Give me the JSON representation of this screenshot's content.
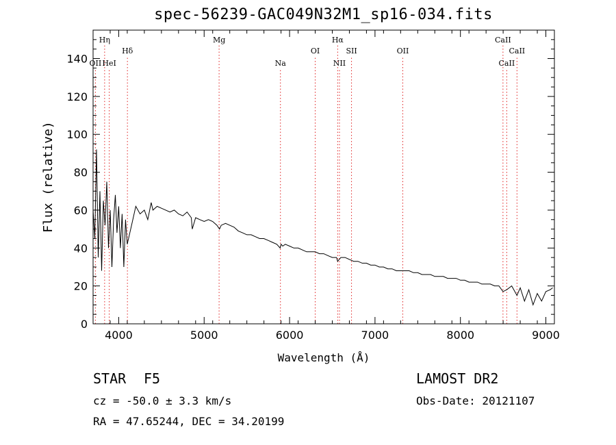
{
  "chart_data": {
    "type": "line",
    "title": "spec-56239-GAC049N32M1_sp16-034.fits",
    "xlabel": "Wavelength (Å)",
    "ylabel": "Flux (relative)",
    "xlim": [
      3700,
      9100
    ],
    "ylim": [
      0,
      155
    ],
    "x_ticks": [
      4000,
      5000,
      6000,
      7000,
      8000,
      9000
    ],
    "y_ticks": [
      0,
      20,
      40,
      60,
      80,
      100,
      120,
      140
    ],
    "grid": false,
    "line_color": "#000000",
    "marker_color": "#e02020",
    "series": [
      {
        "name": "flux",
        "x": [
          3700,
          3720,
          3740,
          3760,
          3780,
          3800,
          3820,
          3840,
          3860,
          3880,
          3900,
          3920,
          3940,
          3960,
          3980,
          4000,
          4020,
          4040,
          4060,
          4080,
          4100,
          4150,
          4200,
          4250,
          4300,
          4340,
          4380,
          4400,
          4450,
          4500,
          4550,
          4600,
          4650,
          4700,
          4750,
          4800,
          4850,
          4861,
          4900,
          4950,
          5000,
          5050,
          5100,
          5150,
          5180,
          5200,
          5250,
          5300,
          5350,
          5400,
          5450,
          5500,
          5550,
          5600,
          5650,
          5700,
          5750,
          5800,
          5850,
          5890,
          5900,
          5920,
          5950,
          6000,
          6050,
          6100,
          6150,
          6200,
          6250,
          6300,
          6350,
          6400,
          6450,
          6500,
          6550,
          6563,
          6600,
          6650,
          6700,
          6750,
          6800,
          6850,
          6900,
          6950,
          7000,
          7050,
          7100,
          7150,
          7200,
          7250,
          7300,
          7350,
          7400,
          7450,
          7500,
          7550,
          7600,
          7650,
          7700,
          7750,
          7800,
          7850,
          7900,
          7950,
          8000,
          8050,
          8100,
          8150,
          8200,
          8250,
          8300,
          8350,
          8400,
          8450,
          8498,
          8542,
          8600,
          8662,
          8700,
          8750,
          8800,
          8850,
          8900,
          8950,
          9000,
          9050,
          9080
        ],
        "values": [
          60,
          45,
          92,
          35,
          70,
          28,
          65,
          52,
          75,
          40,
          60,
          30,
          55,
          68,
          48,
          62,
          40,
          58,
          30,
          55,
          42,
          52,
          62,
          58,
          60,
          55,
          64,
          60,
          62,
          61,
          60,
          59,
          60,
          58,
          57,
          59,
          56,
          50,
          56,
          55,
          54,
          55,
          54,
          52,
          50,
          52,
          53,
          52,
          51,
          49,
          48,
          47,
          47,
          46,
          45,
          45,
          44,
          43,
          42,
          40,
          42,
          41,
          42,
          41,
          40,
          40,
          39,
          38,
          38,
          38,
          37,
          37,
          36,
          35,
          35,
          33,
          35,
          35,
          34,
          33,
          33,
          32,
          32,
          31,
          31,
          30,
          30,
          29,
          29,
          28,
          28,
          28,
          28,
          27,
          27,
          26,
          26,
          26,
          25,
          25,
          25,
          24,
          24,
          24,
          23,
          23,
          22,
          22,
          22,
          21,
          21,
          21,
          20,
          20,
          17,
          18,
          20,
          15,
          19,
          12,
          18,
          10,
          16,
          12,
          17,
          18,
          19
        ]
      }
    ],
    "line_markers": [
      {
        "label": "OII",
        "x": 3727,
        "row": 2
      },
      {
        "label": "Hη",
        "x": 3835,
        "row": 0
      },
      {
        "label": "HeI",
        "x": 3889,
        "row": 2
      },
      {
        "label": "Hδ",
        "x": 4102,
        "row": 1
      },
      {
        "label": "Mg",
        "x": 5175,
        "row": 0
      },
      {
        "label": "Na",
        "x": 5893,
        "row": 2
      },
      {
        "label": "OI",
        "x": 6300,
        "row": 1
      },
      {
        "label": "Hα",
        "x": 6563,
        "row": 0
      },
      {
        "label": "NII",
        "x": 6584,
        "row": 2
      },
      {
        "label": "SII",
        "x": 6725,
        "row": 1
      },
      {
        "label": "OII",
        "x": 7325,
        "row": 1
      },
      {
        "label": "CaII",
        "x": 8498,
        "row": 0
      },
      {
        "label": "CaII",
        "x": 8542,
        "row": 2
      },
      {
        "label": "CaII",
        "x": 8662,
        "row": 1
      }
    ]
  },
  "info": {
    "object_class": "STAR",
    "subclass": "F5",
    "survey": "LAMOST DR2",
    "redshift": "cz = -50.0 ± 3.3 km/s",
    "obs_date": "Obs-Date: 20121107",
    "coords": "RA =  47.65244, DEC =  34.20199"
  }
}
